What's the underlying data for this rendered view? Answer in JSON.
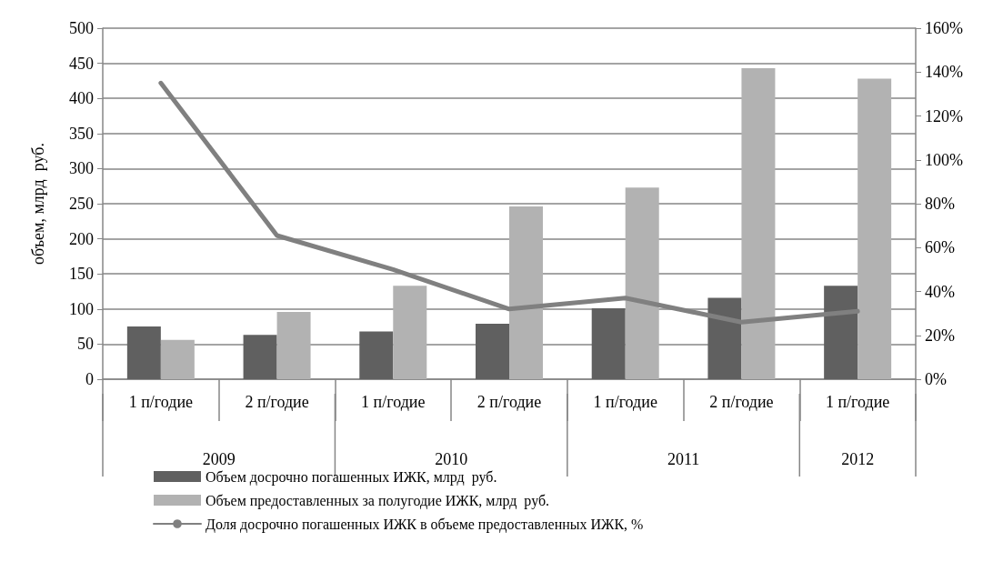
{
  "chart_data": {
    "type": "bar",
    "ylabel": "объем, млрд  руб.",
    "categories": [
      "1 п/годие",
      "2 п/годие",
      "1 п/годие",
      "2 п/годие",
      "1 п/годие",
      "2 п/годие",
      "1 п/годие"
    ],
    "annotations": [
      "2009",
      "2010",
      "2011",
      "2012"
    ],
    "series": [
      {
        "name": "Объем досрочно погашенных ИЖК, млрд  руб.",
        "color": "#606060",
        "values": [
          75,
          63,
          68,
          79,
          101,
          116,
          133
        ]
      },
      {
        "name": "Объем предоставленных за полугодие ИЖК, млрд  руб.",
        "color": "#b2b2b2",
        "values": [
          56,
          96,
          133,
          246,
          273,
          443,
          428
        ]
      },
      {
        "name": "Доля досрочно погашенных ИЖК в объеме предоставленных ИЖК, %",
        "type": "line",
        "axis": "y2",
        "color": "#808080",
        "values": [
          135,
          65.5,
          50,
          32,
          37,
          26,
          31
        ]
      }
    ],
    "ylim": [
      0,
      500
    ],
    "yticks": [
      0,
      50,
      100,
      150,
      200,
      250,
      300,
      350,
      400,
      450,
      500
    ],
    "y2lim": [
      0,
      160
    ],
    "y2ticks": [
      {
        "value": 0,
        "label": "0%"
      },
      {
        "value": 20,
        "label": "20%"
      },
      {
        "value": 40,
        "label": "40%"
      },
      {
        "value": 60,
        "label": "60%"
      },
      {
        "value": 80,
        "label": "80%"
      },
      {
        "value": 100,
        "label": "100%"
      },
      {
        "value": 120,
        "label": "120%"
      },
      {
        "value": 140,
        "label": "140%"
      },
      {
        "value": 160,
        "label": "160%"
      }
    ],
    "grid": "y",
    "legend": "bottom",
    "marker": "none"
  }
}
